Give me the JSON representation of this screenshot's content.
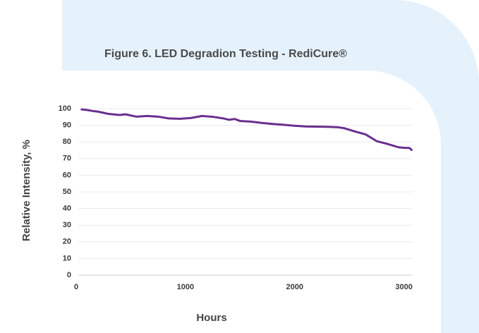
{
  "chart_data": {
    "type": "line",
    "title": "Figure 6. LED Degradion Testing - RediCure®",
    "x_label": "Hours",
    "y_label": "Relative Intensity, %",
    "x": [
      50,
      100,
      150,
      200,
      300,
      400,
      450,
      550,
      650,
      750,
      850,
      950,
      1050,
      1150,
      1250,
      1350,
      1400,
      1450,
      1500,
      1600,
      1700,
      1800,
      1900,
      2000,
      2100,
      2200,
      2300,
      2400,
      2450,
      2550,
      2650,
      2750,
      2850,
      2950,
      3000,
      3050,
      3070
    ],
    "series": [
      {
        "name": "RediCure",
        "color": "#6b2f8f",
        "values": [
          99.5,
          99.2,
          98.6,
          98.2,
          96.8,
          96.2,
          96.6,
          95.2,
          95.6,
          95.2,
          94.1,
          93.9,
          94.4,
          95.6,
          95.1,
          94.1,
          93.3,
          93.8,
          92.6,
          92.2,
          91.4,
          90.8,
          90.3,
          89.7,
          89.3,
          89.2,
          89.1,
          88.8,
          88.3,
          86.3,
          84.5,
          80.5,
          78.8,
          76.8,
          76.5,
          76.4,
          75.2
        ]
      }
    ],
    "xlim": [
      0,
      3080
    ],
    "ylim": [
      0,
      100
    ],
    "xticks": [
      0,
      1000,
      2000,
      3000
    ],
    "yticks": [
      0,
      10,
      20,
      30,
      40,
      50,
      60,
      70,
      80,
      90,
      100
    ],
    "grid": true
  }
}
